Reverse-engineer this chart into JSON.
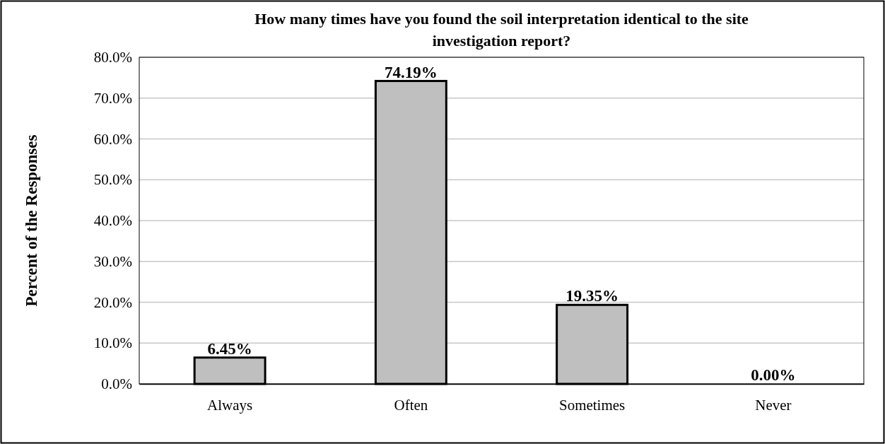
{
  "chart_data": {
    "type": "bar",
    "title": "How many times have you found the soil interpretation identical to the site investigation report?",
    "ylabel": "Percent of the Responses",
    "categories": [
      "Always",
      "Often",
      "Sometimes",
      "Never"
    ],
    "values": [
      6.45,
      74.19,
      19.35,
      0
    ],
    "color": "#bfbfbf",
    "value_labels": [
      "6.45%",
      "74.19%",
      "19.35%",
      "0.00%"
    ],
    "ylim": [
      0,
      80
    ],
    "yticks": [
      {
        "value": 0,
        "label": "0.0%"
      },
      {
        "value": 10,
        "label": "10.0%"
      },
      {
        "value": 20,
        "label": "20.0%"
      },
      {
        "value": 30,
        "label": "30.0%"
      },
      {
        "value": 40,
        "label": "40.0%"
      },
      {
        "value": 50,
        "label": "50.0%"
      },
      {
        "value": 60,
        "label": "60.0%"
      },
      {
        "value": 70,
        "label": "70.0%"
      },
      {
        "value": 80,
        "label": "80.0%"
      }
    ],
    "grid": "y"
  }
}
